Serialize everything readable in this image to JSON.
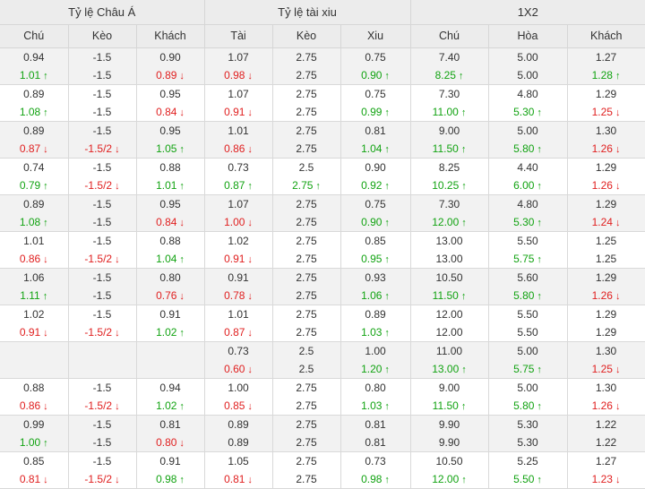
{
  "groups": [
    "Tỷ lệ Châu Á",
    "Tỷ lệ tài xiu",
    "1X2"
  ],
  "columns": [
    "Chú",
    "Kèo",
    "Khách",
    "Tài",
    "Kèo",
    "Xiu",
    "Chú",
    "Hòa",
    "Khách"
  ],
  "colors": {
    "up": "#12a312",
    "down": "#e01f1f",
    "header_bg": "#ececec",
    "alt_row_bg": "#f2f2f2"
  },
  "rows": [
    [
      {
        "o": "0.94",
        "c": "1.01",
        "d": "up"
      },
      {
        "o": "-1.5",
        "c": "-1.5",
        "d": ""
      },
      {
        "o": "0.90",
        "c": "0.89",
        "d": "down"
      },
      {
        "o": "1.07",
        "c": "0.98",
        "d": "down"
      },
      {
        "o": "2.75",
        "c": "2.75",
        "d": ""
      },
      {
        "o": "0.75",
        "c": "0.90",
        "d": "up"
      },
      {
        "o": "7.40",
        "c": "8.25",
        "d": "up"
      },
      {
        "o": "5.00",
        "c": "5.00",
        "d": ""
      },
      {
        "o": "1.27",
        "c": "1.28",
        "d": "up"
      }
    ],
    [
      {
        "o": "0.89",
        "c": "1.08",
        "d": "up"
      },
      {
        "o": "-1.5",
        "c": "-1.5",
        "d": ""
      },
      {
        "o": "0.95",
        "c": "0.84",
        "d": "down"
      },
      {
        "o": "1.07",
        "c": "0.91",
        "d": "down"
      },
      {
        "o": "2.75",
        "c": "2.75",
        "d": ""
      },
      {
        "o": "0.75",
        "c": "0.99",
        "d": "up"
      },
      {
        "o": "7.30",
        "c": "11.00",
        "d": "up"
      },
      {
        "o": "4.80",
        "c": "5.30",
        "d": "up"
      },
      {
        "o": "1.29",
        "c": "1.25",
        "d": "down"
      }
    ],
    [
      {
        "o": "0.89",
        "c": "0.87",
        "d": "down"
      },
      {
        "o": "-1.5",
        "c": "-1.5/2",
        "d": "down"
      },
      {
        "o": "0.95",
        "c": "1.05",
        "d": "up"
      },
      {
        "o": "1.01",
        "c": "0.86",
        "d": "down"
      },
      {
        "o": "2.75",
        "c": "2.75",
        "d": ""
      },
      {
        "o": "0.81",
        "c": "1.04",
        "d": "up"
      },
      {
        "o": "9.00",
        "c": "11.50",
        "d": "up"
      },
      {
        "o": "5.00",
        "c": "5.80",
        "d": "up"
      },
      {
        "o": "1.30",
        "c": "1.26",
        "d": "down"
      }
    ],
    [
      {
        "o": "0.74",
        "c": "0.79",
        "d": "up"
      },
      {
        "o": "-1.5",
        "c": "-1.5/2",
        "d": "down"
      },
      {
        "o": "0.88",
        "c": "1.01",
        "d": "up"
      },
      {
        "o": "0.73",
        "c": "0.87",
        "d": "up"
      },
      {
        "o": "2.5",
        "c": "2.75",
        "d": "up"
      },
      {
        "o": "0.90",
        "c": "0.92",
        "d": "up"
      },
      {
        "o": "8.25",
        "c": "10.25",
        "d": "up"
      },
      {
        "o": "4.40",
        "c": "6.00",
        "d": "up"
      },
      {
        "o": "1.29",
        "c": "1.26",
        "d": "down"
      }
    ],
    [
      {
        "o": "0.89",
        "c": "1.08",
        "d": "up"
      },
      {
        "o": "-1.5",
        "c": "-1.5",
        "d": ""
      },
      {
        "o": "0.95",
        "c": "0.84",
        "d": "down"
      },
      {
        "o": "1.07",
        "c": "1.00",
        "d": "down"
      },
      {
        "o": "2.75",
        "c": "2.75",
        "d": ""
      },
      {
        "o": "0.75",
        "c": "0.90",
        "d": "up"
      },
      {
        "o": "7.30",
        "c": "12.00",
        "d": "up"
      },
      {
        "o": "4.80",
        "c": "5.30",
        "d": "up"
      },
      {
        "o": "1.29",
        "c": "1.24",
        "d": "down"
      }
    ],
    [
      {
        "o": "1.01",
        "c": "0.86",
        "d": "down"
      },
      {
        "o": "-1.5",
        "c": "-1.5/2",
        "d": "down"
      },
      {
        "o": "0.88",
        "c": "1.04",
        "d": "up"
      },
      {
        "o": "1.02",
        "c": "0.91",
        "d": "down"
      },
      {
        "o": "2.75",
        "c": "2.75",
        "d": ""
      },
      {
        "o": "0.85",
        "c": "0.95",
        "d": "up"
      },
      {
        "o": "13.00",
        "c": "13.00",
        "d": ""
      },
      {
        "o": "5.50",
        "c": "5.75",
        "d": "up"
      },
      {
        "o": "1.25",
        "c": "1.25",
        "d": ""
      }
    ],
    [
      {
        "o": "1.06",
        "c": "1.11",
        "d": "up"
      },
      {
        "o": "-1.5",
        "c": "-1.5",
        "d": ""
      },
      {
        "o": "0.80",
        "c": "0.76",
        "d": "down"
      },
      {
        "o": "0.91",
        "c": "0.78",
        "d": "down"
      },
      {
        "o": "2.75",
        "c": "2.75",
        "d": ""
      },
      {
        "o": "0.93",
        "c": "1.06",
        "d": "up"
      },
      {
        "o": "10.50",
        "c": "11.50",
        "d": "up"
      },
      {
        "o": "5.60",
        "c": "5.80",
        "d": "up"
      },
      {
        "o": "1.29",
        "c": "1.26",
        "d": "down"
      }
    ],
    [
      {
        "o": "1.02",
        "c": "0.91",
        "d": "down"
      },
      {
        "o": "-1.5",
        "c": "-1.5/2",
        "d": "down"
      },
      {
        "o": "0.91",
        "c": "1.02",
        "d": "up"
      },
      {
        "o": "1.01",
        "c": "0.87",
        "d": "down"
      },
      {
        "o": "2.75",
        "c": "2.75",
        "d": ""
      },
      {
        "o": "0.89",
        "c": "1.03",
        "d": "up"
      },
      {
        "o": "12.00",
        "c": "12.00",
        "d": ""
      },
      {
        "o": "5.50",
        "c": "5.50",
        "d": ""
      },
      {
        "o": "1.29",
        "c": "1.29",
        "d": ""
      }
    ],
    [
      {
        "o": "",
        "c": "",
        "d": ""
      },
      {
        "o": "",
        "c": "",
        "d": ""
      },
      {
        "o": "",
        "c": "",
        "d": ""
      },
      {
        "o": "0.73",
        "c": "0.60",
        "d": "down"
      },
      {
        "o": "2.5",
        "c": "2.5",
        "d": ""
      },
      {
        "o": "1.00",
        "c": "1.20",
        "d": "up"
      },
      {
        "o": "11.00",
        "c": "13.00",
        "d": "up"
      },
      {
        "o": "5.00",
        "c": "5.75",
        "d": "up"
      },
      {
        "o": "1.30",
        "c": "1.25",
        "d": "down"
      }
    ],
    [
      {
        "o": "0.88",
        "c": "0.86",
        "d": "down"
      },
      {
        "o": "-1.5",
        "c": "-1.5/2",
        "d": "down"
      },
      {
        "o": "0.94",
        "c": "1.02",
        "d": "up"
      },
      {
        "o": "1.00",
        "c": "0.85",
        "d": "down"
      },
      {
        "o": "2.75",
        "c": "2.75",
        "d": ""
      },
      {
        "o": "0.80",
        "c": "1.03",
        "d": "up"
      },
      {
        "o": "9.00",
        "c": "11.50",
        "d": "up"
      },
      {
        "o": "5.00",
        "c": "5.80",
        "d": "up"
      },
      {
        "o": "1.30",
        "c": "1.26",
        "d": "down"
      }
    ],
    [
      {
        "o": "0.99",
        "c": "1.00",
        "d": "up"
      },
      {
        "o": "-1.5",
        "c": "-1.5",
        "d": ""
      },
      {
        "o": "0.81",
        "c": "0.80",
        "d": "down"
      },
      {
        "o": "0.89",
        "c": "0.89",
        "d": ""
      },
      {
        "o": "2.75",
        "c": "2.75",
        "d": ""
      },
      {
        "o": "0.81",
        "c": "0.81",
        "d": ""
      },
      {
        "o": "9.90",
        "c": "9.90",
        "d": ""
      },
      {
        "o": "5.30",
        "c": "5.30",
        "d": ""
      },
      {
        "o": "1.22",
        "c": "1.22",
        "d": ""
      }
    ],
    [
      {
        "o": "0.85",
        "c": "0.81",
        "d": "down"
      },
      {
        "o": "-1.5",
        "c": "-1.5/2",
        "d": "down"
      },
      {
        "o": "0.91",
        "c": "0.98",
        "d": "up"
      },
      {
        "o": "1.05",
        "c": "0.81",
        "d": "down"
      },
      {
        "o": "2.75",
        "c": "2.75",
        "d": ""
      },
      {
        "o": "0.73",
        "c": "0.98",
        "d": "up"
      },
      {
        "o": "10.50",
        "c": "12.00",
        "d": "up"
      },
      {
        "o": "5.25",
        "c": "5.50",
        "d": "up"
      },
      {
        "o": "1.27",
        "c": "1.23",
        "d": "down"
      }
    ]
  ]
}
